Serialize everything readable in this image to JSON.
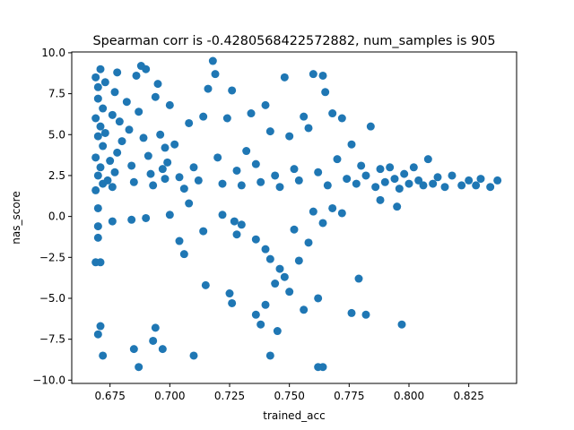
{
  "chart_data": {
    "type": "scatter",
    "title": "Spearman corr is -0.4280568422572882, num_samples is 905",
    "xlabel": "trained_acc",
    "ylabel": "nas_score",
    "xlim": [
      0.659,
      0.845
    ],
    "ylim": [
      -10.2,
      10.05
    ],
    "xticks": [
      0.675,
      0.7,
      0.725,
      0.75,
      0.775,
      0.8,
      0.825
    ],
    "xtick_labels": [
      "0.675",
      "0.700",
      "0.725",
      "0.750",
      "0.775",
      "0.800",
      "0.825"
    ],
    "yticks": [
      -10.0,
      -7.5,
      -5.0,
      -2.5,
      0.0,
      2.5,
      5.0,
      7.5,
      10.0
    ],
    "ytick_labels": [
      "−10.0",
      "−7.5",
      "−5.0",
      "−2.5",
      "0.0",
      "2.5",
      "5.0",
      "7.5",
      "10.0"
    ],
    "grid": false,
    "legend": "none",
    "color": "#1f77b4",
    "points": [
      {
        "x": 0.669,
        "y": 8.5
      },
      {
        "x": 0.67,
        "y": 7.9
      },
      {
        "x": 0.671,
        "y": 9.0
      },
      {
        "x": 0.673,
        "y": 8.2
      },
      {
        "x": 0.67,
        "y": 7.2
      },
      {
        "x": 0.672,
        "y": 6.6
      },
      {
        "x": 0.669,
        "y": 6.0
      },
      {
        "x": 0.671,
        "y": 5.5
      },
      {
        "x": 0.67,
        "y": 4.9
      },
      {
        "x": 0.672,
        "y": 4.3
      },
      {
        "x": 0.669,
        "y": 3.6
      },
      {
        "x": 0.671,
        "y": 3.0
      },
      {
        "x": 0.67,
        "y": 2.5
      },
      {
        "x": 0.672,
        "y": 2.0
      },
      {
        "x": 0.669,
        "y": 1.6
      },
      {
        "x": 0.674,
        "y": 2.2
      },
      {
        "x": 0.675,
        "y": 3.4
      },
      {
        "x": 0.673,
        "y": 5.1
      },
      {
        "x": 0.676,
        "y": 6.2
      },
      {
        "x": 0.677,
        "y": 7.6
      },
      {
        "x": 0.678,
        "y": 8.8
      },
      {
        "x": 0.679,
        "y": 5.8
      },
      {
        "x": 0.68,
        "y": 4.6
      },
      {
        "x": 0.678,
        "y": 3.9
      },
      {
        "x": 0.677,
        "y": 2.7
      },
      {
        "x": 0.676,
        "y": 1.8
      },
      {
        "x": 0.67,
        "y": 0.5
      },
      {
        "x": 0.67,
        "y": -0.6
      },
      {
        "x": 0.67,
        "y": -1.3
      },
      {
        "x": 0.669,
        "y": -2.8
      },
      {
        "x": 0.671,
        "y": -2.8
      },
      {
        "x": 0.676,
        "y": -0.3
      },
      {
        "x": 0.671,
        "y": -6.7
      },
      {
        "x": 0.67,
        "y": -7.2
      },
      {
        "x": 0.672,
        "y": -8.5
      },
      {
        "x": 0.682,
        "y": 7.0
      },
      {
        "x": 0.683,
        "y": 5.3
      },
      {
        "x": 0.684,
        "y": 3.1
      },
      {
        "x": 0.685,
        "y": 2.1
      },
      {
        "x": 0.686,
        "y": 8.6
      },
      {
        "x": 0.688,
        "y": 9.2
      },
      {
        "x": 0.69,
        "y": 9.0
      },
      {
        "x": 0.687,
        "y": 6.4
      },
      {
        "x": 0.689,
        "y": 4.8
      },
      {
        "x": 0.691,
        "y": 3.7
      },
      {
        "x": 0.692,
        "y": 2.6
      },
      {
        "x": 0.693,
        "y": 1.9
      },
      {
        "x": 0.694,
        "y": 7.3
      },
      {
        "x": 0.695,
        "y": 8.1
      },
      {
        "x": 0.696,
        "y": 5.0
      },
      {
        "x": 0.697,
        "y": 2.9
      },
      {
        "x": 0.698,
        "y": 2.3
      },
      {
        "x": 0.699,
        "y": 3.3
      },
      {
        "x": 0.7,
        "y": 6.8
      },
      {
        "x": 0.702,
        "y": 4.4
      },
      {
        "x": 0.704,
        "y": 2.4
      },
      {
        "x": 0.706,
        "y": 1.7
      },
      {
        "x": 0.708,
        "y": 5.7
      },
      {
        "x": 0.71,
        "y": 3.0
      },
      {
        "x": 0.712,
        "y": 2.2
      },
      {
        "x": 0.714,
        "y": 6.1
      },
      {
        "x": 0.716,
        "y": 7.8
      },
      {
        "x": 0.718,
        "y": 9.5
      },
      {
        "x": 0.719,
        "y": 8.7
      },
      {
        "x": 0.72,
        "y": 3.6
      },
      {
        "x": 0.722,
        "y": 2.0
      },
      {
        "x": 0.724,
        "y": 6.0
      },
      {
        "x": 0.726,
        "y": 7.7
      },
      {
        "x": 0.728,
        "y": 2.8
      },
      {
        "x": 0.73,
        "y": 1.9
      },
      {
        "x": 0.732,
        "y": 4.0
      },
      {
        "x": 0.734,
        "y": 6.3
      },
      {
        "x": 0.736,
        "y": 3.2
      },
      {
        "x": 0.738,
        "y": 2.1
      },
      {
        "x": 0.74,
        "y": 6.8
      },
      {
        "x": 0.742,
        "y": 5.2
      },
      {
        "x": 0.744,
        "y": 2.5
      },
      {
        "x": 0.746,
        "y": 1.8
      },
      {
        "x": 0.748,
        "y": 8.5
      },
      {
        "x": 0.75,
        "y": 4.9
      },
      {
        "x": 0.752,
        "y": 2.9
      },
      {
        "x": 0.754,
        "y": 2.2
      },
      {
        "x": 0.756,
        "y": 6.1
      },
      {
        "x": 0.758,
        "y": 5.4
      },
      {
        "x": 0.76,
        "y": 8.7
      },
      {
        "x": 0.762,
        "y": 2.7
      },
      {
        "x": 0.764,
        "y": 8.6
      },
      {
        "x": 0.765,
        "y": 7.6
      },
      {
        "x": 0.766,
        "y": 1.9
      },
      {
        "x": 0.768,
        "y": 6.3
      },
      {
        "x": 0.77,
        "y": 3.5
      },
      {
        "x": 0.772,
        "y": 6.0
      },
      {
        "x": 0.774,
        "y": 2.3
      },
      {
        "x": 0.776,
        "y": 4.4
      },
      {
        "x": 0.778,
        "y": 2.0
      },
      {
        "x": 0.78,
        "y": 3.1
      },
      {
        "x": 0.782,
        "y": 2.5
      },
      {
        "x": 0.784,
        "y": 5.5
      },
      {
        "x": 0.786,
        "y": 1.8
      },
      {
        "x": 0.788,
        "y": 2.9
      },
      {
        "x": 0.79,
        "y": 2.1
      },
      {
        "x": 0.792,
        "y": 3.0
      },
      {
        "x": 0.794,
        "y": 2.3
      },
      {
        "x": 0.796,
        "y": 1.7
      },
      {
        "x": 0.798,
        "y": 2.6
      },
      {
        "x": 0.8,
        "y": 2.0
      },
      {
        "x": 0.802,
        "y": 3.0
      },
      {
        "x": 0.804,
        "y": 2.2
      },
      {
        "x": 0.806,
        "y": 1.9
      },
      {
        "x": 0.808,
        "y": 3.5
      },
      {
        "x": 0.81,
        "y": 2.0
      },
      {
        "x": 0.812,
        "y": 2.4
      },
      {
        "x": 0.815,
        "y": 1.8
      },
      {
        "x": 0.818,
        "y": 2.5
      },
      {
        "x": 0.822,
        "y": 1.9
      },
      {
        "x": 0.825,
        "y": 2.2
      },
      {
        "x": 0.828,
        "y": 1.9
      },
      {
        "x": 0.83,
        "y": 2.3
      },
      {
        "x": 0.834,
        "y": 1.8
      },
      {
        "x": 0.837,
        "y": 2.2
      },
      {
        "x": 0.684,
        "y": -0.2
      },
      {
        "x": 0.69,
        "y": -0.1
      },
      {
        "x": 0.7,
        "y": 0.1
      },
      {
        "x": 0.704,
        "y": -1.5
      },
      {
        "x": 0.706,
        "y": -2.3
      },
      {
        "x": 0.714,
        "y": -0.9
      },
      {
        "x": 0.722,
        "y": 0.1
      },
      {
        "x": 0.727,
        "y": -0.3
      },
      {
        "x": 0.73,
        "y": -0.5
      },
      {
        "x": 0.728,
        "y": -1.1
      },
      {
        "x": 0.736,
        "y": -1.4
      },
      {
        "x": 0.74,
        "y": -2.0
      },
      {
        "x": 0.742,
        "y": -2.6
      },
      {
        "x": 0.746,
        "y": -3.2
      },
      {
        "x": 0.748,
        "y": -3.7
      },
      {
        "x": 0.744,
        "y": -4.1
      },
      {
        "x": 0.75,
        "y": -4.6
      },
      {
        "x": 0.754,
        "y": -2.7
      },
      {
        "x": 0.758,
        "y": -1.6
      },
      {
        "x": 0.752,
        "y": -0.8
      },
      {
        "x": 0.76,
        "y": 0.3
      },
      {
        "x": 0.764,
        "y": -0.4
      },
      {
        "x": 0.768,
        "y": 0.5
      },
      {
        "x": 0.772,
        "y": 0.2
      },
      {
        "x": 0.779,
        "y": -3.8
      },
      {
        "x": 0.776,
        "y": -5.9
      },
      {
        "x": 0.782,
        "y": -6.0
      },
      {
        "x": 0.762,
        "y": -5.0
      },
      {
        "x": 0.756,
        "y": -5.7
      },
      {
        "x": 0.74,
        "y": -5.4
      },
      {
        "x": 0.736,
        "y": -6.0
      },
      {
        "x": 0.738,
        "y": -6.6
      },
      {
        "x": 0.742,
        "y": -8.5
      },
      {
        "x": 0.745,
        "y": -7.0
      },
      {
        "x": 0.725,
        "y": -4.7
      },
      {
        "x": 0.726,
        "y": -5.3
      },
      {
        "x": 0.715,
        "y": -4.2
      },
      {
        "x": 0.71,
        "y": -8.5
      },
      {
        "x": 0.694,
        "y": -6.8
      },
      {
        "x": 0.693,
        "y": -7.6
      },
      {
        "x": 0.697,
        "y": -8.1
      },
      {
        "x": 0.685,
        "y": -8.1
      },
      {
        "x": 0.687,
        "y": -9.2
      },
      {
        "x": 0.762,
        "y": -9.2
      },
      {
        "x": 0.764,
        "y": -9.2
      },
      {
        "x": 0.797,
        "y": -6.6
      },
      {
        "x": 0.795,
        "y": 0.6
      },
      {
        "x": 0.788,
        "y": 1.0
      },
      {
        "x": 0.698,
        "y": 4.2
      },
      {
        "x": 0.708,
        "y": 0.8
      }
    ]
  }
}
